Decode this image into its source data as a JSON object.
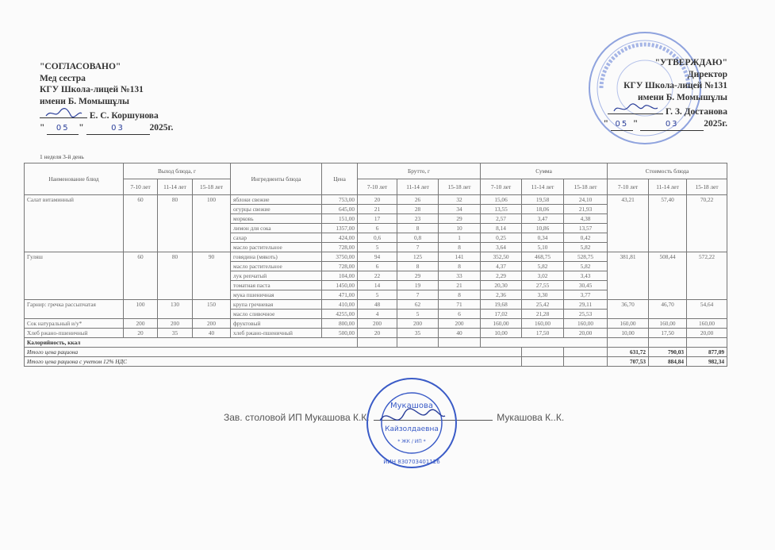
{
  "approved_left": {
    "title": "\"СОГЛАСОВАНО\"",
    "role": "Мед сестра",
    "org": "КГУ Школа-лицей №131",
    "org_name": "имени Б. Момышұлы",
    "signer": "Е. С. Коршунова",
    "day": "05",
    "month": "03",
    "year": "2025г."
  },
  "approved_right": {
    "title": "\"УТВЕРЖДАЮ\"",
    "role": "Директор",
    "org": "КГУ Школа-лицей №131",
    "org_name": "имени Б. Момышұлы",
    "signer": "Г. З. Достанова",
    "day": "05",
    "month": "03",
    "year": "2025г."
  },
  "day_label": "1 неделя 3-й день",
  "table": {
    "headers": {
      "dish": "Наименование блюд",
      "yield": "Выход блюда, г",
      "ingredients": "Ингредиенты блюда",
      "price": "Цена",
      "brutto": "Брутто, г",
      "sum": "Сумма",
      "cost": "Стоимость блюда",
      "ages": [
        "7-10 лет",
        "11-14 лет",
        "15-18 лет"
      ]
    },
    "dishes": [
      {
        "name": "Салат витаминный",
        "yield": [
          "60",
          "80",
          "100"
        ],
        "cost": [
          "43,21",
          "57,40",
          "70,22"
        ],
        "ingredients": [
          {
            "name": "яблоки свежие",
            "price": "753,00",
            "brutto": [
              "20",
              "26",
              "32"
            ],
            "sum": [
              "15,06",
              "19,58",
              "24,10"
            ]
          },
          {
            "name": "огурцы свежие",
            "price": "645,00",
            "brutto": [
              "21",
              "28",
              "34"
            ],
            "sum": [
              "13,55",
              "18,06",
              "21,93"
            ]
          },
          {
            "name": "морковь",
            "price": "151,00",
            "brutto": [
              "17",
              "23",
              "29"
            ],
            "sum": [
              "2,57",
              "3,47",
              "4,38"
            ]
          },
          {
            "name": "лимон для сока",
            "price": "1357,00",
            "brutto": [
              "6",
              "8",
              "10"
            ],
            "sum": [
              "8,14",
              "10,86",
              "13,57"
            ]
          },
          {
            "name": "сахар",
            "price": "424,00",
            "brutto": [
              "0,6",
              "0,8",
              "1"
            ],
            "sum": [
              "0,25",
              "0,34",
              "0,42"
            ]
          },
          {
            "name": "масло растительное",
            "price": "728,00",
            "brutto": [
              "5",
              "7",
              "8"
            ],
            "sum": [
              "3,64",
              "5,10",
              "5,82"
            ]
          }
        ]
      },
      {
        "name": "Гуляш",
        "yield": [
          "60",
          "80",
          "90"
        ],
        "cost": [
          "381,81",
          "508,44",
          "572,22"
        ],
        "ingredients": [
          {
            "name": "говядина (мякоть)",
            "price": "3750,00",
            "brutto": [
              "94",
              "125",
              "141"
            ],
            "sum": [
              "352,50",
              "468,75",
              "528,75"
            ]
          },
          {
            "name": "масло растительное",
            "price": "728,00",
            "brutto": [
              "6",
              "8",
              "8"
            ],
            "sum": [
              "4,37",
              "5,82",
              "5,82"
            ]
          },
          {
            "name": "лук репчатый",
            "price": "104,00",
            "brutto": [
              "22",
              "29",
              "33"
            ],
            "sum": [
              "2,29",
              "3,02",
              "3,43"
            ]
          },
          {
            "name": "томатная паста",
            "price": "1450,00",
            "brutto": [
              "14",
              "19",
              "21"
            ],
            "sum": [
              "20,30",
              "27,55",
              "30,45"
            ]
          },
          {
            "name": "мука пшеничная",
            "price": "471,00",
            "brutto": [
              "5",
              "7",
              "8"
            ],
            "sum": [
              "2,36",
              "3,30",
              "3,77"
            ]
          }
        ]
      },
      {
        "name": "Гарнир: гречка рассыпчатая",
        "yield": [
          "100",
          "130",
          "150"
        ],
        "cost": [
          "36,70",
          "46,70",
          "54,64"
        ],
        "ingredients": [
          {
            "name": "крупа гречневая",
            "price": "410,00",
            "brutto": [
              "48",
              "62",
              "71"
            ],
            "sum": [
              "19,68",
              "25,42",
              "29,11"
            ]
          },
          {
            "name": "масло сливочное",
            "price": "4255,00",
            "brutto": [
              "4",
              "5",
              "6"
            ],
            "sum": [
              "17,02",
              "21,28",
              "25,53"
            ]
          }
        ]
      },
      {
        "name": "Сок натуральный и/у*",
        "yield": [
          "200",
          "200",
          "200"
        ],
        "cost": [
          "160,00",
          "160,00",
          "160,00"
        ],
        "ingredients": [
          {
            "name": "фруктовый",
            "price": "800,00",
            "brutto": [
              "200",
              "200",
              "200"
            ],
            "sum": [
              "160,00",
              "160,00",
              "160,00"
            ]
          }
        ]
      },
      {
        "name": "Хлеб ржано-пшеничный",
        "yield": [
          "20",
          "35",
          "40"
        ],
        "cost": [
          "10,00",
          "17,50",
          "20,00"
        ],
        "ingredients": [
          {
            "name": "хлеб ржано-пшеничный",
            "price": "500,00",
            "brutto": [
              "20",
              "35",
              "40"
            ],
            "sum": [
              "10,00",
              "17,50",
              "20,00"
            ]
          }
        ]
      }
    ],
    "calories_label": "Калорийность, ккал",
    "total_label": "Итого цена рациона",
    "total": [
      "631,72",
      "790,03",
      "877,09"
    ],
    "total_vat_label": "Итого цена рациона с учетом 12% НДС",
    "total_vat": [
      "707,53",
      "884,84",
      "982,34"
    ]
  },
  "footer": {
    "left": "Зав. столовой ИП Мукашова К.К.",
    "right": "Мукашова К..К."
  },
  "stamps": {
    "school": "ҚАЗАҚСТАН РЕСПУБЛИКАСЫ АЛМАТЫ ҚАЛАСЫ",
    "ip": [
      "Казақстан Республикасы Алматы қаласы",
      "Мукашова",
      "Кайзолдаевна",
      "ЖК / ИП",
      "ИИН 830703401126"
    ]
  },
  "colors": {
    "stamp": "#3a5bc7",
    "ink": "#2b3f9a"
  }
}
